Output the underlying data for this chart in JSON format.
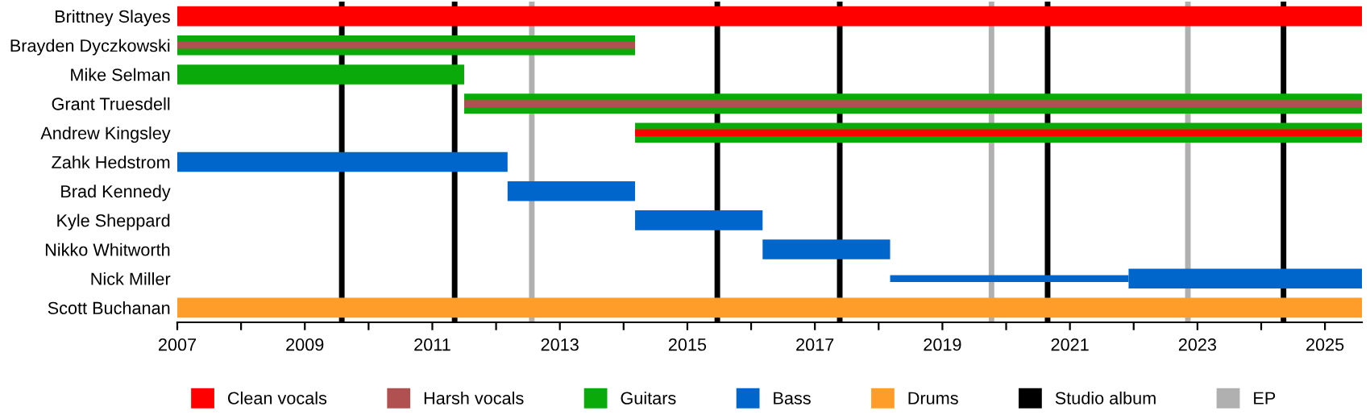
{
  "chart_data": {
    "type": "bar",
    "orientation": "horizontal",
    "categories": [
      "Brittney Slayes",
      "Brayden Dyczkowski",
      "Mike Selman",
      "Grant Truesdell",
      "Andrew Kingsley",
      "Zahk Hedstrom",
      "Brad Kennedy",
      "Kyle Sheppard",
      "Nikko Whitworth",
      "Nick Miller",
      "Scott Buchanan"
    ],
    "series": [
      {
        "name": "Clean vocals",
        "color": "#ff0000",
        "base": [
          2007,
          null,
          null,
          null,
          2014.18,
          null,
          null,
          null,
          null,
          null,
          null
        ],
        "values": [
          18.58,
          null,
          null,
          null,
          11.4,
          null,
          null,
          null,
          null,
          null,
          null
        ]
      },
      {
        "name": "Harsh vocals",
        "color": "#b05050",
        "base": [
          null,
          2007,
          null,
          2011.5,
          null,
          null,
          null,
          null,
          null,
          null,
          null
        ],
        "values": [
          null,
          7.18,
          null,
          14.08,
          null,
          null,
          null,
          null,
          null,
          null,
          null
        ]
      },
      {
        "name": "Guitars",
        "color": "#0aaa0a",
        "base": [
          null,
          2007,
          2007,
          2011.5,
          2014.18,
          null,
          null,
          null,
          null,
          null,
          null
        ],
        "values": [
          null,
          7.18,
          4.5,
          14.08,
          11.4,
          null,
          null,
          null,
          null,
          null,
          null
        ]
      },
      {
        "name": "Bass",
        "color": "#0066cc",
        "base": [
          null,
          null,
          null,
          null,
          null,
          2007,
          2012.18,
          2014.18,
          2016.18,
          2021.92,
          null
        ],
        "values": [
          null,
          null,
          null,
          null,
          null,
          5.18,
          2.0,
          2.0,
          2.0,
          3.66,
          null
        ]
      },
      {
        "name": "Drums",
        "color": "#ff9d2a",
        "base": [
          null,
          null,
          null,
          null,
          null,
          null,
          null,
          null,
          null,
          null,
          2007
        ],
        "values": [
          null,
          null,
          null,
          null,
          null,
          null,
          null,
          null,
          null,
          null,
          18.58
        ]
      },
      {
        "color": "#0066cc",
        "base": [
          null,
          null,
          null,
          null,
          null,
          null,
          null,
          null,
          null,
          2018.18,
          null
        ],
        "values": [
          null,
          null,
          null,
          null,
          null,
          null,
          null,
          null,
          null,
          3.74,
          null
        ]
      }
    ],
    "ref_lines": [
      {
        "axis": "x",
        "value": 2009.58,
        "label": "Studio album",
        "color": "#000000"
      },
      {
        "axis": "x",
        "value": 2011.35,
        "color": "#000000"
      },
      {
        "axis": "x",
        "value": 2015.47,
        "color": "#000000"
      },
      {
        "axis": "x",
        "value": 2017.39,
        "color": "#000000"
      },
      {
        "axis": "x",
        "value": 2020.65,
        "color": "#000000"
      },
      {
        "axis": "x",
        "value": 2024.35,
        "color": "#000000"
      },
      {
        "axis": "x",
        "value": 2012.56,
        "label": "EP",
        "color": "#b0b0b0"
      },
      {
        "axis": "x",
        "value": 2019.77,
        "color": "#b0b0b0"
      },
      {
        "axis": "x",
        "value": 2022.85,
        "color": "#b0b0b0"
      }
    ],
    "xlim": [
      2007,
      2025.58
    ],
    "xticks": [
      2007,
      {
        "value": 2008,
        "label": null
      },
      2009,
      {
        "value": 2010,
        "label": null
      },
      2011,
      {
        "value": 2012,
        "label": null
      },
      2013,
      {
        "value": 2014,
        "label": null
      },
      2015,
      {
        "value": 2016,
        "label": null
      },
      2017,
      {
        "value": 2018,
        "label": null
      },
      2019,
      {
        "value": 2020,
        "label": null
      },
      2021,
      {
        "value": 2022,
        "label": null
      },
      2023,
      {
        "value": 2024,
        "label": null
      },
      2025
    ],
    "grid": false,
    "legend": "bottom"
  }
}
